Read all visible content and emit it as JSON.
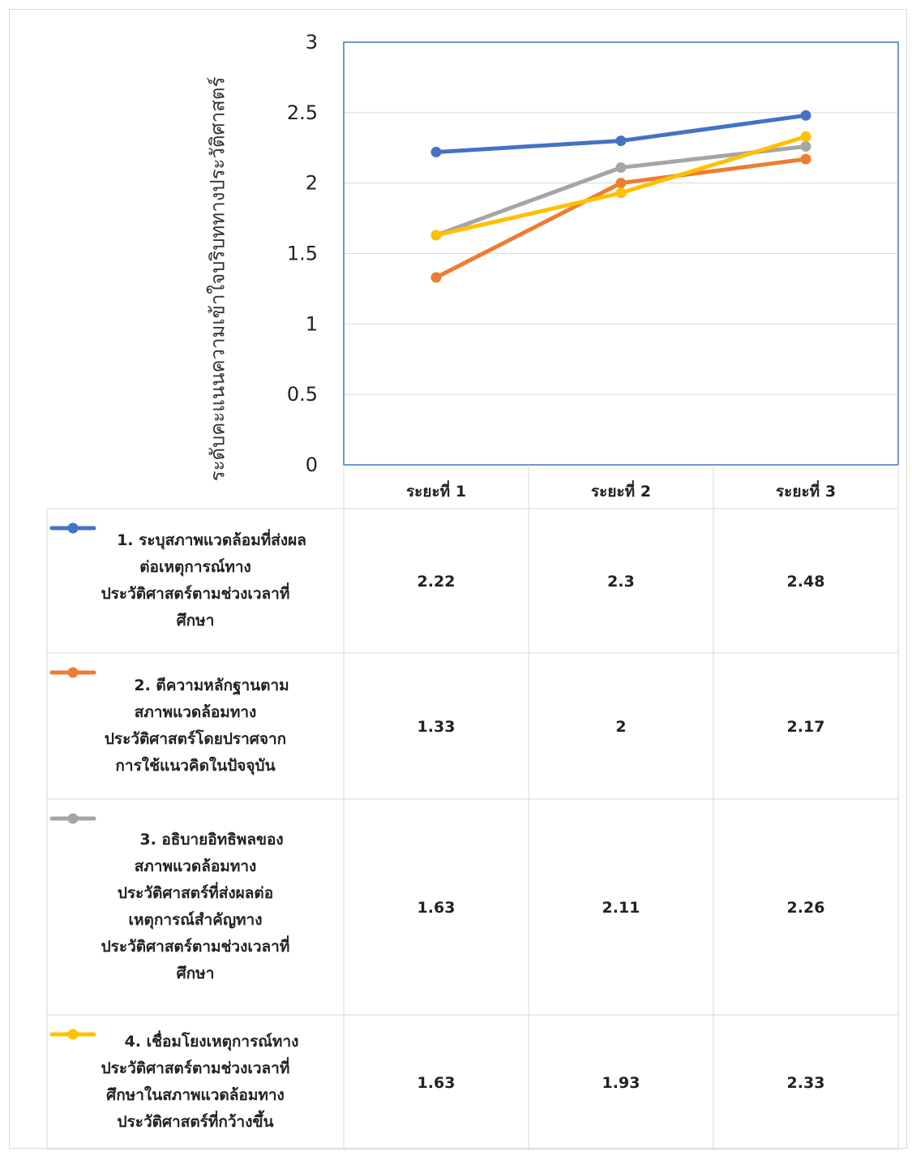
{
  "chart_data": {
    "type": "line",
    "ylabel": "ระดับคะแนนความเข้าใจบริบททางประวัติศาสตร์",
    "ylim": [
      0,
      3
    ],
    "yticks": [
      "0",
      "0.5",
      "1",
      "1.5",
      "2",
      "2.5",
      "3"
    ],
    "categories": [
      "ระยะที่ 1",
      "ระยะที่ 2",
      "ระยะที่ 3"
    ],
    "grid": true,
    "legend": "data-table",
    "series": [
      {
        "name": "1. ระบุสภาพแวดล้อมที่ส่งผลต่อเหตุการณ์ทางประวัติศาสตร์ตามช่วงเวลาที่ศึกษา",
        "lines": [
          "1. ระบุสภาพแวดล้อมที่ส่งผล",
          "ต่อเหตุการณ์ทาง",
          "ประวัติศาสตร์ตามช่วงเวลาที่",
          "ศึกษา"
        ],
        "values": [
          2.22,
          2.3,
          2.48
        ],
        "labels": [
          "2.22",
          "2.3",
          "2.48"
        ],
        "color": "#4472c4"
      },
      {
        "name": "2. ตีความหลักฐานตามสภาพแวดล้อมทางประวัติศาสตร์โดยปราศจากการใช้แนวคิดในปัจจุบัน",
        "lines": [
          "2. ตีความหลักฐานตาม",
          "สภาพแวดล้อมทาง",
          "ประวัติศาสตร์โดยปราศจาก",
          "การใช้แนวคิดในปัจจุบัน"
        ],
        "values": [
          1.33,
          2,
          2.17
        ],
        "labels": [
          "1.33",
          "2",
          "2.17"
        ],
        "color": "#ed7d31"
      },
      {
        "name": "3. อธิบายอิทธิพลของสภาพแวดล้อมทางประวัติศาสตร์ที่ส่งผลต่อเหตุการณ์สำคัญทางประวัติศาสตร์ตามช่วงเวลาที่ศึกษา",
        "lines": [
          "3. อธิบายอิทธิพลของ",
          "สภาพแวดล้อมทาง",
          "ประวัติศาสตร์ที่ส่งผลต่อ",
          "เหตุการณ์สำคัญทาง",
          "ประวัติศาสตร์ตามช่วงเวลาที่",
          "ศึกษา"
        ],
        "values": [
          1.63,
          2.11,
          2.26
        ],
        "labels": [
          "1.63",
          "2.11",
          "2.26"
        ],
        "color": "#a5a5a5"
      },
      {
        "name": "4. เชื่อมโยงเหตุการณ์ทางประวัติศาสตร์ตามช่วงเวลาที่ศึกษาในสภาพแวดล้อมทางประวัติศาสตร์ที่กว้างขึ้น",
        "lines": [
          "4. เชื่อมโยงเหตุการณ์ทาง",
          "ประวัติศาสตร์ตามช่วงเวลาที่",
          "ศึกษาในสภาพแวดล้อมทาง",
          "ประวัติศาสตร์ที่กว้างขึ้น"
        ],
        "values": [
          1.63,
          1.93,
          2.33
        ],
        "labels": [
          "1.63",
          "1.93",
          "2.33"
        ],
        "color": "#ffc000"
      }
    ]
  }
}
